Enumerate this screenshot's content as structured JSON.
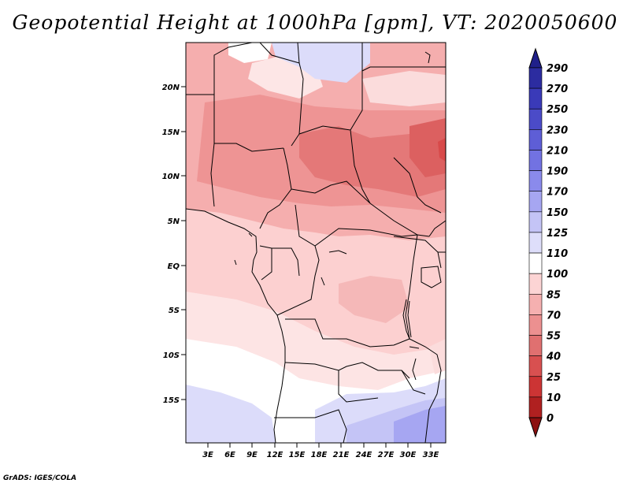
{
  "title": "Geopotential Height at 1000hPa [gpm], VT: 2020050600",
  "credit": "GrADS: IGES/COLA",
  "map": {
    "lat_ticks": [
      "20N",
      "15N",
      "10N",
      "5N",
      "EQ",
      "5S",
      "10S",
      "15S"
    ],
    "lon_ticks": [
      "3E",
      "6E",
      "9E",
      "12E",
      "15E",
      "18E",
      "21E",
      "24E",
      "27E",
      "30E",
      "33E"
    ],
    "lat_range": [
      -20,
      25
    ],
    "lon_range": [
      0,
      35
    ],
    "field_description": "Geopotential height at 1000 hPa over west-central Africa"
  },
  "colorbar": {
    "labels": [
      "290",
      "270",
      "250",
      "230",
      "210",
      "190",
      "170",
      "150",
      "125",
      "110",
      "100",
      "85",
      "70",
      "55",
      "40",
      "25",
      "10",
      "0"
    ],
    "colors": [
      "#20208a",
      "#2c2ca0",
      "#3a3ab8",
      "#4b4bc8",
      "#5e5ed6",
      "#7272e2",
      "#8a8aec",
      "#a6a6f2",
      "#c4c4f6",
      "#dedefa",
      "#ffffff",
      "#fcd4d4",
      "#f5b0b0",
      "#ec9090",
      "#e07070",
      "#d85050",
      "#cc3434",
      "#b02020",
      "#8c1010"
    ]
  }
}
